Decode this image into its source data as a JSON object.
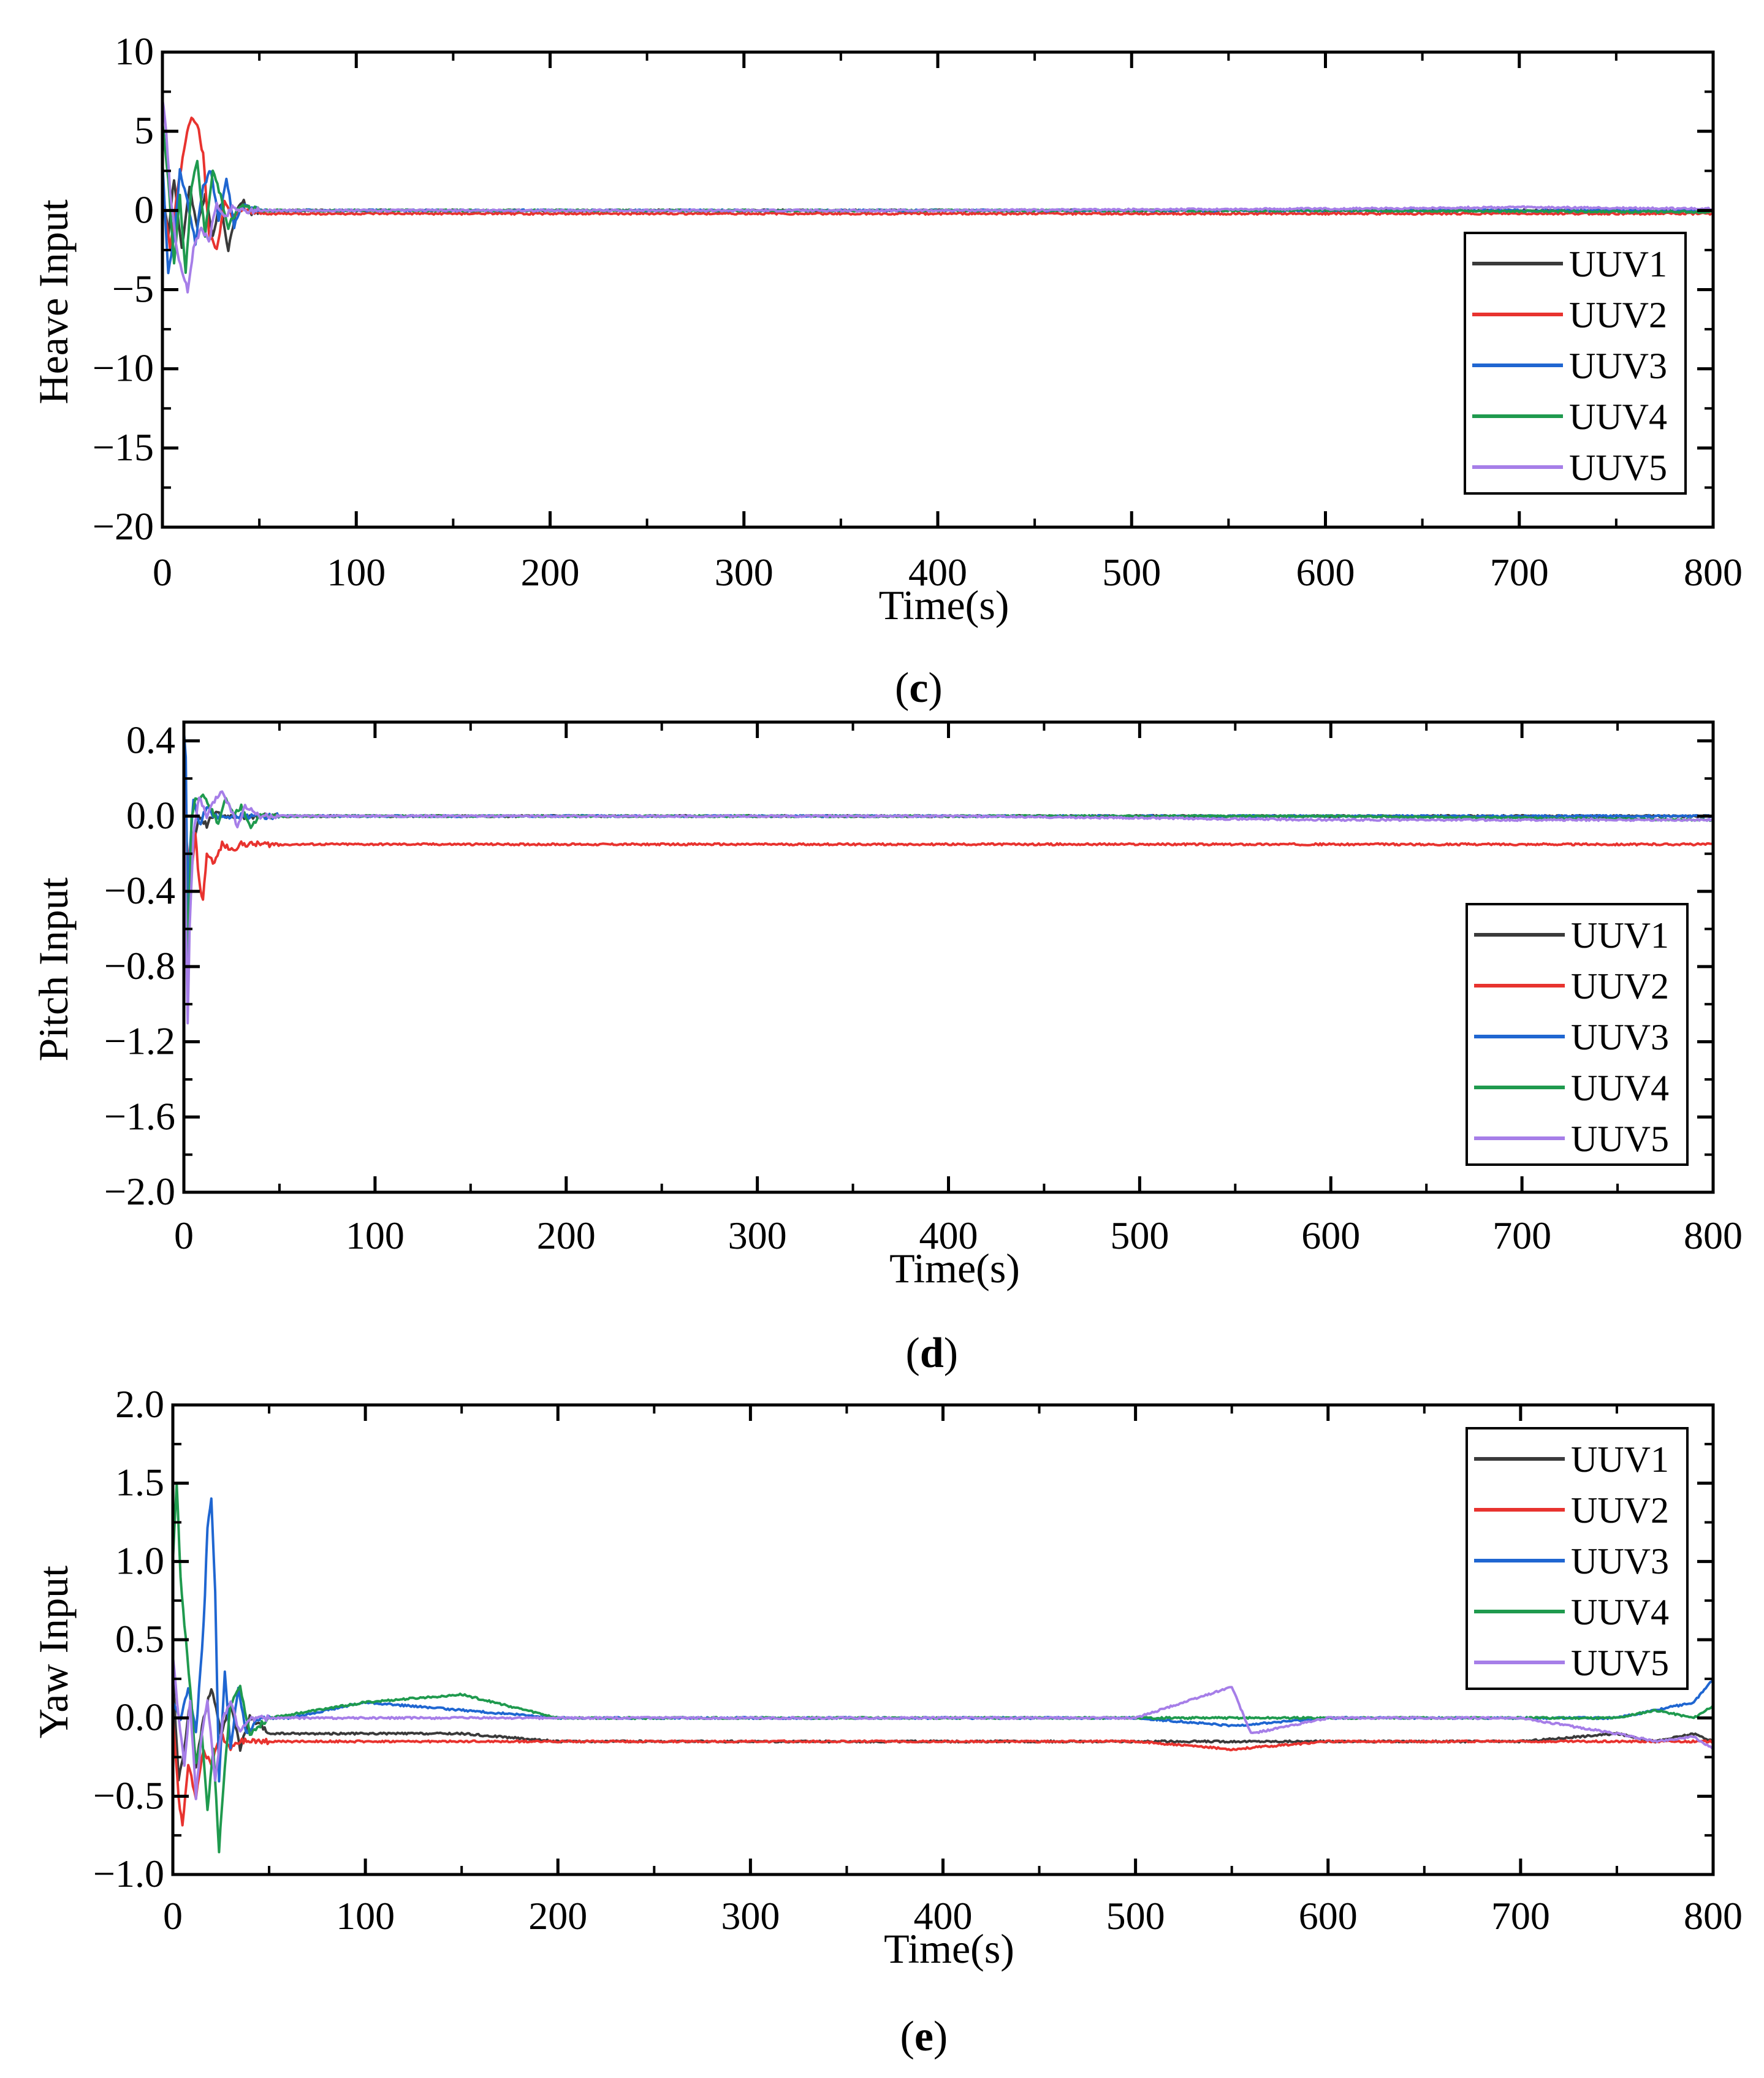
{
  "colors": {
    "UUV1": "#3a3a3a",
    "UUV2": "#e8332f",
    "UUV3": "#1f66d1",
    "UUV4": "#1f9a4e",
    "UUV5": "#a67ee8"
  },
  "chart_data": [
    {
      "type": "line",
      "panel_label": "c",
      "xlabel": "Time(s)",
      "ylabel": "Heave Input",
      "xlim": [
        0,
        800
      ],
      "ylim": [
        -20,
        10
      ],
      "xticks": [
        "0",
        "100",
        "200",
        "300",
        "400",
        "500",
        "600",
        "700",
        "800"
      ],
      "yticks": [
        "10",
        "5",
        "0",
        "−5",
        "−10",
        "−15",
        "−20"
      ],
      "legend": [
        "UUV1",
        "UUV2",
        "UUV3",
        "UUV4",
        "UUV5"
      ],
      "legend_position": "right",
      "series": [
        {
          "name": "UUV1",
          "x": [
            0,
            3,
            6,
            10,
            14,
            18,
            22,
            26,
            30,
            34,
            38,
            42,
            46,
            50,
            60,
            200,
            400,
            600,
            800
          ],
          "y": [
            1.5,
            -1.5,
            2.0,
            -2.5,
            1.5,
            -1.0,
            1.0,
            -1.5,
            0.5,
            -2.5,
            0.0,
            0.6,
            -0.2,
            0.0,
            0.0,
            0.0,
            0.0,
            0.0,
            0.0
          ]
        },
        {
          "name": "UUV2",
          "x": [
            0,
            4,
            8,
            12,
            15,
            18,
            21,
            24,
            28,
            32,
            36,
            40,
            50,
            60,
            200,
            400,
            600,
            800
          ],
          "y": [
            1.0,
            -2.5,
            1.5,
            4.5,
            6.0,
            5.5,
            3.5,
            -1.5,
            -2.5,
            0.5,
            -0.5,
            0.0,
            -0.2,
            -0.2,
            -0.2,
            -0.2,
            -0.2,
            -0.2
          ]
        },
        {
          "name": "UUV3",
          "x": [
            0,
            3,
            6,
            9,
            13,
            17,
            21,
            25,
            29,
            33,
            37,
            41,
            50,
            60,
            200,
            400,
            600,
            800
          ],
          "y": [
            3.0,
            -4.0,
            -1.5,
            2.5,
            0.5,
            -2.0,
            1.5,
            2.5,
            -0.5,
            2.0,
            -1.0,
            0.3,
            0.0,
            0.0,
            0.0,
            0.0,
            0.0,
            0.0
          ]
        },
        {
          "name": "UUV4",
          "x": [
            0,
            3,
            6,
            9,
            12,
            15,
            18,
            22,
            26,
            30,
            34,
            40,
            50,
            60,
            200,
            400,
            600,
            800
          ],
          "y": [
            5.5,
            2.0,
            -3.5,
            1.0,
            -4.0,
            1.5,
            3.0,
            -1.5,
            2.5,
            1.0,
            -1.0,
            0.3,
            0.0,
            0.0,
            0.0,
            0.0,
            0.0,
            -0.1
          ]
        },
        {
          "name": "UUV5",
          "x": [
            0,
            2,
            4,
            7,
            10,
            13,
            16,
            20,
            24,
            28,
            32,
            36,
            42,
            50,
            60,
            200,
            400,
            600,
            700,
            800
          ],
          "y": [
            7.0,
            5.0,
            1.0,
            -2.0,
            -4.0,
            -5.0,
            -2.5,
            -1.0,
            -2.0,
            0.5,
            -0.5,
            0.2,
            0.0,
            0.0,
            0.0,
            0.0,
            0.0,
            0.1,
            0.2,
            0.1
          ]
        }
      ]
    },
    {
      "type": "line",
      "panel_label": "d",
      "xlabel": "Time(s)",
      "ylabel": "Pitch Input",
      "xlim": [
        0,
        800
      ],
      "ylim": [
        -2.0,
        0.5
      ],
      "xticks": [
        "0",
        "100",
        "200",
        "300",
        "400",
        "500",
        "600",
        "700",
        "800"
      ],
      "yticks": [
        "0.4",
        "0.0",
        "−0.4",
        "−0.8",
        "−1.2",
        "−1.6",
        "−2.0"
      ],
      "legend": [
        "UUV1",
        "UUV2",
        "UUV3",
        "UUV4",
        "UUV5"
      ],
      "legend_position": "right",
      "series": [
        {
          "name": "UUV1",
          "x": [
            0,
            2,
            4,
            6,
            8,
            12,
            16,
            20,
            30,
            40,
            60,
            200,
            400,
            600,
            800
          ],
          "y": [
            0.1,
            -0.6,
            -0.2,
            -0.1,
            0.0,
            -0.05,
            0.02,
            0.0,
            0.0,
            0.0,
            0.0,
            0.0,
            0.0,
            0.0,
            0.0
          ]
        },
        {
          "name": "UUV2",
          "x": [
            0,
            2,
            4,
            6,
            8,
            10,
            12,
            16,
            20,
            25,
            30,
            40,
            60,
            200,
            400,
            600,
            800
          ],
          "y": [
            0.0,
            -0.2,
            -0.3,
            -0.1,
            -0.35,
            -0.45,
            -0.2,
            -0.25,
            -0.15,
            -0.18,
            -0.15,
            -0.15,
            -0.15,
            -0.15,
            -0.15,
            -0.15,
            -0.15
          ]
        },
        {
          "name": "UUV3",
          "x": [
            0,
            1,
            2,
            3,
            5,
            8,
            12,
            16,
            20,
            30,
            40,
            60,
            200,
            400,
            600,
            800
          ],
          "y": [
            0.45,
            0.3,
            -0.6,
            -0.2,
            0.1,
            -0.05,
            0.05,
            0.0,
            0.0,
            0.0,
            0.0,
            0.0,
            0.0,
            0.0,
            0.0,
            0.0
          ]
        },
        {
          "name": "UUV4",
          "x": [
            0,
            2,
            4,
            6,
            10,
            14,
            18,
            22,
            26,
            30,
            35,
            40,
            60,
            200,
            400,
            600,
            800
          ],
          "y": [
            0.2,
            -0.8,
            0.0,
            0.1,
            0.1,
            0.05,
            -0.05,
            0.1,
            0.0,
            0.05,
            -0.05,
            0.0,
            0.0,
            0.0,
            0.0,
            0.0,
            -0.02
          ]
        },
        {
          "name": "UUV5",
          "x": [
            0,
            1,
            2,
            3,
            5,
            8,
            12,
            16,
            20,
            24,
            28,
            32,
            40,
            60,
            200,
            400,
            600,
            800
          ],
          "y": [
            0.3,
            -0.5,
            -1.1,
            -0.6,
            -0.1,
            0.1,
            0.0,
            0.08,
            0.14,
            0.05,
            -0.05,
            0.05,
            0.0,
            0.0,
            0.0,
            0.0,
            -0.02,
            -0.02
          ]
        }
      ]
    },
    {
      "type": "line",
      "panel_label": "e",
      "xlabel": "Time(s)",
      "ylabel": "Yaw Input",
      "xlim": [
        0,
        800
      ],
      "ylim": [
        -1.0,
        2.0
      ],
      "xticks": [
        "0",
        "100",
        "200",
        "300",
        "400",
        "500",
        "600",
        "700",
        "800"
      ],
      "yticks": [
        "2.0",
        "1.5",
        "1.0",
        "0.5",
        "0.0",
        "−0.5",
        "−1.0"
      ],
      "legend": [
        "UUV1",
        "UUV2",
        "UUV3",
        "UUV4",
        "UUV5"
      ],
      "legend_position": "top-right",
      "series": [
        {
          "name": "UUV1",
          "x": [
            0,
            3,
            6,
            9,
            12,
            16,
            20,
            25,
            30,
            35,
            40,
            50,
            100,
            150,
            200,
            300,
            400,
            500,
            600,
            700,
            750,
            770,
            790,
            800
          ],
          "y": [
            0.3,
            -0.4,
            -0.2,
            0.1,
            -0.3,
            0.0,
            0.2,
            -0.1,
            0.1,
            -0.2,
            0.0,
            -0.1,
            -0.1,
            -0.1,
            -0.15,
            -0.15,
            -0.15,
            -0.15,
            -0.15,
            -0.15,
            -0.1,
            -0.15,
            -0.1,
            -0.15
          ]
        },
        {
          "name": "UUV2",
          "x": [
            0,
            3,
            5,
            8,
            12,
            16,
            20,
            25,
            30,
            35,
            40,
            50,
            100,
            200,
            300,
            400,
            500,
            550,
            600,
            700,
            800
          ],
          "y": [
            0.0,
            -0.5,
            -0.7,
            -0.3,
            -0.5,
            -0.2,
            -0.3,
            -0.1,
            -0.2,
            -0.15,
            -0.15,
            -0.15,
            -0.15,
            -0.15,
            -0.15,
            -0.15,
            -0.15,
            -0.2,
            -0.15,
            -0.15,
            -0.15
          ]
        },
        {
          "name": "UUV3",
          "x": [
            0,
            4,
            8,
            12,
            16,
            18,
            20,
            22,
            24,
            27,
            30,
            34,
            38,
            45,
            60,
            100,
            150,
            200,
            300,
            400,
            500,
            550,
            600,
            700,
            750,
            790,
            800
          ],
          "y": [
            0.1,
            0.0,
            0.2,
            -0.1,
            0.6,
            1.2,
            1.42,
            0.8,
            -0.4,
            0.3,
            -0.2,
            0.2,
            -0.1,
            0.0,
            0.0,
            0.1,
            0.05,
            0.0,
            0.0,
            0.0,
            0.0,
            -0.05,
            0.0,
            0.0,
            0.0,
            0.1,
            0.25
          ]
        },
        {
          "name": "UUV4",
          "x": [
            0,
            2,
            4,
            6,
            9,
            12,
            15,
            18,
            21,
            24,
            27,
            30,
            35,
            40,
            50,
            100,
            150,
            200,
            300,
            400,
            500,
            600,
            700,
            750,
            770,
            790,
            800
          ],
          "y": [
            1.0,
            1.5,
            0.9,
            0.6,
            0.2,
            -0.3,
            -0.1,
            -0.6,
            -0.2,
            -0.85,
            -0.3,
            0.1,
            0.2,
            -0.1,
            0.0,
            0.1,
            0.15,
            0.0,
            0.0,
            0.0,
            0.0,
            0.0,
            0.0,
            0.0,
            0.05,
            0.0,
            0.08
          ]
        },
        {
          "name": "UUV5",
          "x": [
            0,
            3,
            6,
            9,
            12,
            15,
            18,
            22,
            26,
            30,
            35,
            40,
            50,
            100,
            200,
            300,
            400,
            500,
            550,
            560,
            600,
            700,
            750,
            770,
            790,
            800
          ],
          "y": [
            0.4,
            0.0,
            -0.3,
            0.1,
            -0.5,
            -0.1,
            0.1,
            -0.4,
            0.0,
            0.1,
            -0.1,
            0.0,
            0.0,
            0.0,
            0.0,
            0.0,
            0.0,
            0.0,
            0.2,
            -0.1,
            0.0,
            0.0,
            -0.1,
            -0.15,
            -0.12,
            -0.2
          ]
        }
      ]
    }
  ]
}
